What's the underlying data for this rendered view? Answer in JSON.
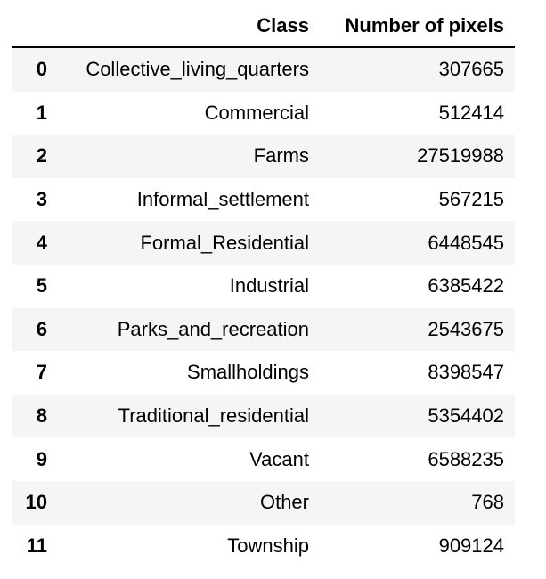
{
  "table": {
    "headers": {
      "index": "",
      "class": "Class",
      "pixels": "Number of pixels"
    },
    "rows": [
      {
        "index": "0",
        "class": "Collective_living_quarters",
        "pixels": "307665"
      },
      {
        "index": "1",
        "class": "Commercial",
        "pixels": "512414"
      },
      {
        "index": "2",
        "class": "Farms",
        "pixels": "27519988"
      },
      {
        "index": "3",
        "class": "Informal_settlement",
        "pixels": "567215"
      },
      {
        "index": "4",
        "class": "Formal_Residential",
        "pixels": "6448545"
      },
      {
        "index": "5",
        "class": "Industrial",
        "pixels": "6385422"
      },
      {
        "index": "6",
        "class": "Parks_and_recreation",
        "pixels": "2543675"
      },
      {
        "index": "7",
        "class": "Smallholdings",
        "pixels": "8398547"
      },
      {
        "index": "8",
        "class": "Traditional_residential",
        "pixels": "5354402"
      },
      {
        "index": "9",
        "class": "Vacant",
        "pixels": "6588235"
      },
      {
        "index": "10",
        "class": "Other",
        "pixels": "768"
      },
      {
        "index": "11",
        "class": "Township",
        "pixels": "909124"
      }
    ]
  },
  "colors": {
    "stripe": "#f5f5f5",
    "background": "#ffffff",
    "header_rule": "#000000"
  }
}
